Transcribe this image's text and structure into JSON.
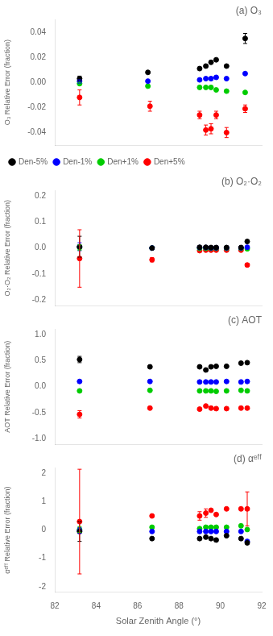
{
  "chart_data": [
    {
      "type": "scatter",
      "title": "(a) O₃",
      "ylabel": "O₃ Relative Error (fraction)",
      "xlim": [
        82,
        92
      ],
      "xticks": [
        82,
        84,
        86,
        88,
        90,
        92
      ],
      "ylim": [
        -0.05,
        0.05
      ],
      "yticks": [
        -0.04,
        -0.02,
        {
          "value": 0,
          "label": "0.00"
        },
        0.02,
        0.04
      ],
      "grid": false,
      "tick_labels": "y",
      "legend": "lower left",
      "series": [
        {
          "name": "Den-5%",
          "color": "#000000",
          "x": [
            83.2,
            86.5,
            89.0,
            89.3,
            89.55,
            89.8,
            90.3,
            91.2
          ],
          "values": [
            0.003,
            0.008,
            0.011,
            0.013,
            0.016,
            0.018,
            0.013,
            0.035
          ],
          "yerr": [
            0.002,
            null,
            null,
            null,
            null,
            null,
            null,
            0.004
          ]
        },
        {
          "name": "Den-1%",
          "color": "#0000FF",
          "x": [
            83.2,
            86.5,
            89.0,
            89.3,
            89.55,
            89.8,
            90.3,
            91.2
          ],
          "values": [
            0.001,
            0.001,
            0.002,
            0.003,
            0.003,
            0.004,
            0.003,
            0.007
          ],
          "yerr": [
            0.001,
            null,
            null,
            null,
            null,
            null,
            null,
            null
          ]
        },
        {
          "name": "Den+1%",
          "color": "#00CC00",
          "x": [
            83.2,
            86.5,
            89.0,
            89.3,
            89.55,
            89.8,
            90.3,
            91.2
          ],
          "values": [
            -0.001,
            -0.003,
            -0.004,
            -0.004,
            -0.004,
            -0.006,
            -0.007,
            -0.008
          ],
          "yerr": [
            0.001,
            null,
            null,
            null,
            null,
            null,
            null,
            null
          ]
        },
        {
          "name": "Den+5%",
          "color": "#FF0000",
          "x": [
            83.2,
            86.6,
            89.0,
            89.3,
            89.55,
            89.8,
            90.3,
            91.2
          ],
          "values": [
            -0.012,
            -0.019,
            -0.026,
            -0.038,
            -0.037,
            -0.026,
            -0.04,
            -0.021
          ],
          "yerr": [
            0.006,
            0.004,
            0.003,
            0.004,
            0.004,
            0.003,
            0.004,
            0.003
          ]
        }
      ]
    },
    {
      "type": "scatter",
      "title": "(b) O₂·O₂",
      "ylabel": "O₂·O₂ Relative Error (fraction)",
      "xlim": [
        82,
        92
      ],
      "xticks": [
        82,
        84,
        86,
        88,
        90,
        92
      ],
      "ylim": [
        -0.22,
        0.22
      ],
      "yticks": [
        -0.2,
        -0.1,
        {
          "value": 0,
          "label": "0.0"
        },
        0.1,
        0.2
      ],
      "grid": false,
      "tick_labels": "y",
      "series": [
        {
          "color": "#000000",
          "x": [
            83.2,
            86.7,
            89.0,
            89.3,
            89.55,
            89.8,
            90.3,
            91.0,
            91.3
          ],
          "values": [
            0.005,
            0.0,
            0.003,
            0.003,
            0.002,
            0.002,
            0.002,
            0.002,
            0.025
          ],
          "yerr": [
            0.04,
            null,
            null,
            null,
            null,
            null,
            null,
            null,
            null
          ]
        },
        {
          "color": "#0000FF",
          "x": [
            83.2,
            86.7,
            89.0,
            89.3,
            89.55,
            89.8,
            90.3,
            91.0,
            91.3
          ],
          "values": [
            0.005,
            0.0,
            0.002,
            0.002,
            0.001,
            0.001,
            0.001,
            0.001,
            0.003
          ],
          "yerr": [
            0.015,
            null,
            null,
            null,
            null,
            null,
            null,
            null,
            null
          ]
        },
        {
          "color": "#00CC00",
          "x": [
            83.2,
            86.7,
            89.0,
            89.3,
            89.55,
            89.8,
            90.3,
            91.0,
            91.3
          ],
          "values": [
            0.002,
            0.0,
            -0.001,
            -0.001,
            -0.001,
            -0.001,
            -0.001,
            -0.001,
            -0.003
          ],
          "yerr": [
            0.01,
            null,
            null,
            null,
            null,
            null,
            null,
            null,
            null
          ]
        },
        {
          "color": "#FF0000",
          "x": [
            83.2,
            86.7,
            89.0,
            89.3,
            89.55,
            89.8,
            90.3,
            91.0,
            91.3
          ],
          "values": [
            -0.04,
            -0.045,
            -0.01,
            -0.008,
            -0.008,
            -0.008,
            -0.008,
            -0.008,
            -0.065
          ],
          "yerr": [
            0.11,
            0.008,
            null,
            null,
            null,
            null,
            null,
            null,
            0.006
          ]
        }
      ]
    },
    {
      "type": "scatter",
      "title": "(c) AOT",
      "ylabel": "AOT Relative Error (fraction)",
      "xlim": [
        82,
        92
      ],
      "xticks": [
        82,
        84,
        86,
        88,
        90,
        92
      ],
      "ylim": [
        -1.1,
        1.1
      ],
      "yticks": [
        {
          "value": -1.0,
          "label": "-1.0"
        },
        -0.5,
        {
          "value": 0,
          "label": "0.0"
        },
        0.5,
        {
          "value": 1.0,
          "label": "1.0"
        }
      ],
      "grid": false,
      "tick_labels": "y",
      "series": [
        {
          "color": "#000000",
          "x": [
            83.2,
            86.6,
            89.0,
            89.3,
            89.55,
            89.8,
            90.3,
            91.0,
            91.3
          ],
          "values": [
            0.52,
            0.38,
            0.38,
            0.32,
            0.38,
            0.39,
            0.39,
            0.45,
            0.46
          ],
          "yerr": [
            0.06,
            null,
            null,
            null,
            null,
            null,
            null,
            null,
            null
          ]
        },
        {
          "color": "#0000FF",
          "x": [
            83.2,
            86.6,
            89.0,
            89.3,
            89.55,
            89.8,
            90.3,
            91.0,
            91.3
          ],
          "values": [
            0.1,
            0.1,
            0.09,
            0.09,
            0.09,
            0.09,
            0.1,
            0.09,
            0.1
          ],
          "yerr": [
            null,
            null,
            null,
            null,
            null,
            null,
            null,
            null,
            null
          ]
        },
        {
          "color": "#00CC00",
          "x": [
            83.2,
            86.6,
            89.0,
            89.3,
            89.55,
            89.8,
            90.3,
            91.0,
            91.3
          ],
          "values": [
            -0.08,
            -0.07,
            -0.08,
            -0.08,
            -0.08,
            -0.09,
            -0.08,
            -0.07,
            -0.08
          ],
          "yerr": [
            null,
            null,
            null,
            null,
            null,
            null,
            null,
            null,
            null
          ]
        },
        {
          "color": "#FF0000",
          "x": [
            83.2,
            86.6,
            89.0,
            89.3,
            89.55,
            89.8,
            90.3,
            91.0,
            91.3
          ],
          "values": [
            -0.53,
            -0.41,
            -0.43,
            -0.37,
            -0.41,
            -0.42,
            -0.42,
            -0.41,
            -0.41
          ],
          "yerr": [
            0.07,
            null,
            null,
            null,
            null,
            null,
            null,
            null,
            null
          ]
        }
      ]
    },
    {
      "type": "scatter",
      "title": "(d) αᵉᶠᶠ",
      "ylabel": "αᵉᶠᶠ Relative Error (fraction)",
      "xlabel": "Solar Zenith Angle (°)",
      "xlim": [
        82,
        92
      ],
      "xticks": [
        82,
        84,
        86,
        88,
        90,
        92
      ],
      "ylim": [
        -2.2,
        2.2
      ],
      "yticks": [
        -2,
        -1,
        0,
        1,
        2
      ],
      "grid": false,
      "series": [
        {
          "color": "#000000",
          "x": [
            83.2,
            86.7,
            89.0,
            89.3,
            89.55,
            89.8,
            90.3,
            91.0,
            91.3
          ],
          "values": [
            -0.05,
            -0.3,
            -0.3,
            -0.25,
            -0.3,
            -0.35,
            -0.2,
            -0.3,
            -0.45
          ],
          "yerr": [
            0.35,
            null,
            null,
            null,
            null,
            null,
            null,
            null,
            null
          ]
        },
        {
          "color": "#0000FF",
          "x": [
            83.2,
            86.7,
            89.0,
            89.3,
            89.55,
            89.8,
            90.3,
            91.0,
            91.3
          ],
          "values": [
            -0.02,
            -0.05,
            -0.05,
            -0.05,
            -0.05,
            -0.05,
            -0.05,
            -0.05,
            -0.4
          ],
          "yerr": [
            0.1,
            null,
            null,
            null,
            null,
            null,
            null,
            null,
            null
          ]
        },
        {
          "color": "#00CC00",
          "x": [
            83.2,
            86.7,
            89.0,
            89.3,
            89.55,
            89.8,
            90.3,
            91.0,
            91.3
          ],
          "values": [
            0.02,
            0.1,
            0.05,
            0.1,
            0.1,
            0.1,
            0.1,
            0.15,
            0.02
          ],
          "yerr": [
            0.1,
            null,
            null,
            null,
            null,
            null,
            null,
            null,
            null
          ]
        },
        {
          "color": "#FF0000",
          "x": [
            83.2,
            86.7,
            89.0,
            89.3,
            89.55,
            89.8,
            90.3,
            91.0,
            91.3
          ],
          "values": [
            0.3,
            0.5,
            0.5,
            0.6,
            0.7,
            0.55,
            0.75,
            0.75,
            0.75
          ],
          "yerr": [
            1.85,
            null,
            0.15,
            0.15,
            null,
            null,
            null,
            null,
            0.6
          ]
        }
      ]
    }
  ]
}
